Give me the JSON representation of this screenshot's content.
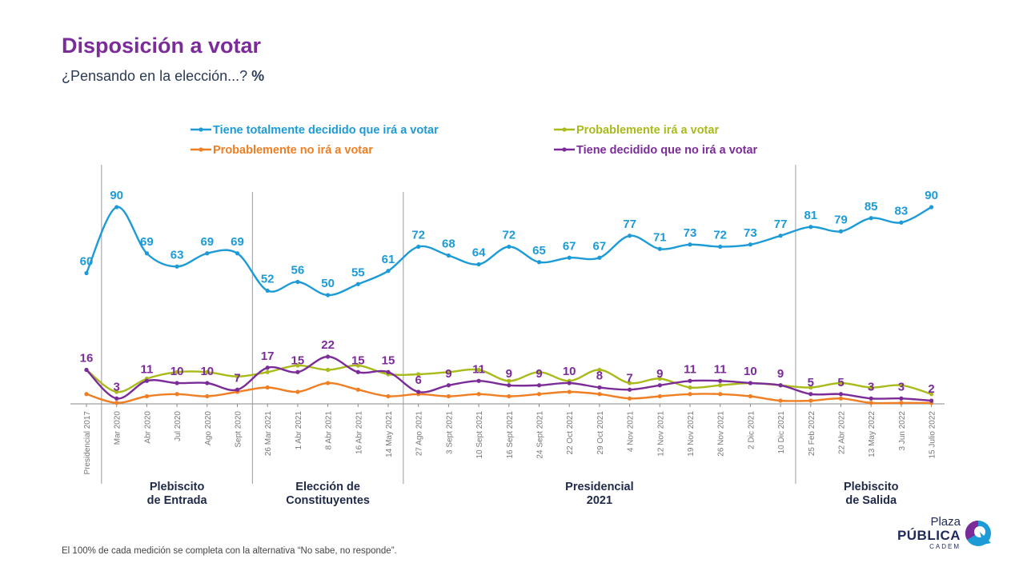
{
  "header": {
    "title": "Disposición a votar",
    "subtitle_text": "¿Pensando en la elección...?",
    "subtitle_unit": "%"
  },
  "footnote": "El 100% de cada medición se completa con la alternativa “No sabe, no responde”.",
  "logo": {
    "line1": "Plaza",
    "line2": "PÚBLICA",
    "line3": "CADEM"
  },
  "colors": {
    "title": "#7B2C99",
    "blue": "#1D9BD7",
    "green": "#A9BA1A",
    "orange": "#F07F24",
    "purple": "#7B2C99",
    "divider": "#999999"
  },
  "chart_data": {
    "type": "line",
    "categories": [
      "Presidencial 2017",
      "Mar 2020",
      "Abr 2020",
      "Jul 2020",
      "Ago 2020",
      "Sept 2020",
      "26 Mar 2021",
      "1 Abr 2021",
      "8 Abr 2021",
      "16 Abr 2021",
      "14 May 2021",
      "27 Ago 2021",
      "3 Sept 2021",
      "10 Sept 2021",
      "16 Sept 2021",
      "24 Sept 2021",
      "22 Oct 2021",
      "29 Oct 2021",
      "4 Nov 2021",
      "12 Nov 2021",
      "19 Nov 2021",
      "26 Nov 2021",
      "2 Dic 2021",
      "10 Dic 2021",
      "25 Feb 2022",
      "22 Abr 2022",
      "13 May 2022",
      "3 Jun 2022",
      "15 Julio 2022"
    ],
    "series": [
      {
        "name": "Tiene totalmente decidido que irá a votar",
        "color": "#1D9BD7",
        "labeled": true,
        "values": [
          60,
          90,
          69,
          63,
          69,
          69,
          52,
          56,
          50,
          55,
          61,
          72,
          68,
          64,
          72,
          65,
          67,
          67,
          77,
          71,
          73,
          72,
          73,
          77,
          81,
          79,
          85,
          83,
          90
        ]
      },
      {
        "name": "Probablemente irá a votar",
        "color": "#A9BA1A",
        "labeled": false,
        "values": [
          16,
          6,
          12,
          15,
          15,
          13,
          15,
          18,
          16,
          18,
          14,
          14,
          15,
          16,
          11,
          15,
          11,
          16,
          10,
          12,
          8,
          9,
          10,
          9,
          8,
          10,
          8,
          9,
          5
        ]
      },
      {
        "name": "Probablemente no irá a votar",
        "color": "#F07F24",
        "labeled": false,
        "values": [
          5,
          1,
          4,
          5,
          4,
          6,
          8,
          6,
          10,
          7,
          4,
          5,
          4,
          5,
          4,
          5,
          6,
          5,
          3,
          4,
          5,
          5,
          4,
          2,
          2,
          3,
          1,
          1,
          1
        ]
      },
      {
        "name": "Tiene decidido que no irá a votar",
        "color": "#7B2C99",
        "labeled": true,
        "values": [
          16,
          3,
          11,
          10,
          10,
          7,
          17,
          15,
          22,
          15,
          15,
          6,
          9,
          11,
          9,
          9,
          10,
          8,
          7,
          9,
          11,
          11,
          10,
          9,
          5,
          5,
          3,
          3,
          2
        ]
      }
    ],
    "periods": [
      {
        "label_line1": "Plebiscito",
        "label_line2": "de Entrada",
        "from": 1,
        "to": 5
      },
      {
        "label_line1": "Elección de",
        "label_line2": "Constituyentes",
        "from": 6,
        "to": 10
      },
      {
        "label_line1": "Presidencial",
        "label_line2": "2021",
        "from": 11,
        "to": 23
      },
      {
        "label_line1": "Plebiscito",
        "label_line2": "de Salida",
        "from": 24,
        "to": 28
      }
    ],
    "legend_position": "top",
    "grid": false
  }
}
